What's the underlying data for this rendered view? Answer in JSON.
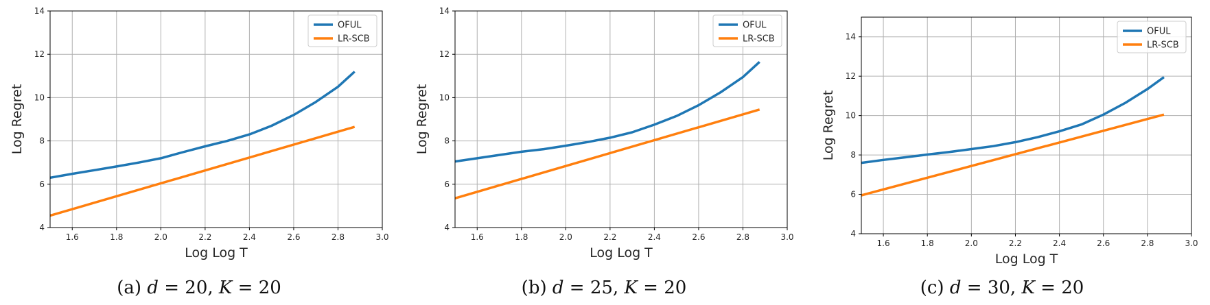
{
  "chart_data": [
    {
      "type": "line",
      "caption": {
        "prefix": "(a) ",
        "d_var": "d",
        "d_val": " = 20, ",
        "k_var": "K",
        "k_val": " = 20"
      },
      "xlabel": "Log Log T",
      "ylabel": "Log Regret",
      "xlim": [
        1.5,
        3.0
      ],
      "ylim": [
        4,
        14
      ],
      "xticks": [
        "1.6",
        "1.8",
        "2.0",
        "2.2",
        "2.4",
        "2.6",
        "2.8",
        "3.0"
      ],
      "yticks": [
        "4",
        "6",
        "8",
        "10",
        "12",
        "14"
      ],
      "grid": true,
      "legend_position": "top-right",
      "series": [
        {
          "name": "OFUL",
          "color": "#1f77b4",
          "x": [
            1.5,
            1.6,
            1.7,
            1.8,
            1.9,
            2.0,
            2.1,
            2.2,
            2.3,
            2.4,
            2.5,
            2.6,
            2.7,
            2.8,
            2.875
          ],
          "y": [
            6.3,
            6.48,
            6.65,
            6.82,
            7.0,
            7.2,
            7.48,
            7.75,
            8.0,
            8.3,
            8.7,
            9.2,
            9.8,
            10.5,
            11.2
          ]
        },
        {
          "name": "LR-SCB",
          "color": "#ff7f0e",
          "x": [
            1.5,
            2.875
          ],
          "y": [
            4.55,
            8.65
          ]
        }
      ]
    },
    {
      "type": "line",
      "caption": {
        "prefix": "(b) ",
        "d_var": "d",
        "d_val": " = 25, ",
        "k_var": "K",
        "k_val": " = 20"
      },
      "xlabel": "Log Log T",
      "ylabel": "Log Regret",
      "xlim": [
        1.5,
        3.0
      ],
      "ylim": [
        4,
        14
      ],
      "xticks": [
        "1.6",
        "1.8",
        "2.0",
        "2.2",
        "2.4",
        "2.6",
        "2.8",
        "3.0"
      ],
      "yticks": [
        "4",
        "6",
        "8",
        "10",
        "12",
        "14"
      ],
      "grid": true,
      "legend_position": "top-right",
      "series": [
        {
          "name": "OFUL",
          "color": "#1f77b4",
          "x": [
            1.5,
            1.6,
            1.7,
            1.8,
            1.9,
            2.0,
            2.1,
            2.2,
            2.3,
            2.4,
            2.5,
            2.6,
            2.7,
            2.8,
            2.875
          ],
          "y": [
            7.05,
            7.2,
            7.35,
            7.5,
            7.62,
            7.78,
            7.95,
            8.15,
            8.4,
            8.75,
            9.15,
            9.65,
            10.25,
            10.95,
            11.65
          ]
        },
        {
          "name": "LR-SCB",
          "color": "#ff7f0e",
          "x": [
            1.5,
            2.875
          ],
          "y": [
            5.35,
            9.45
          ]
        }
      ]
    },
    {
      "type": "line",
      "caption": {
        "prefix": "(c) ",
        "d_var": "d",
        "d_val": " = 30, ",
        "k_var": "K",
        "k_val": " = 20"
      },
      "xlabel": "Log Log T",
      "ylabel": "Log Regret",
      "xlim": [
        1.5,
        3.0
      ],
      "ylim": [
        4,
        15
      ],
      "xticks": [
        "1.6",
        "1.8",
        "2.0",
        "2.2",
        "2.4",
        "2.6",
        "2.8",
        "3.0"
      ],
      "yticks": [
        "4",
        "6",
        "8",
        "10",
        "12",
        "14"
      ],
      "grid": true,
      "legend_position": "top-right",
      "series": [
        {
          "name": "OFUL",
          "color": "#1f77b4",
          "x": [
            1.5,
            1.6,
            1.7,
            1.8,
            1.9,
            2.0,
            2.1,
            2.2,
            2.3,
            2.4,
            2.5,
            2.6,
            2.7,
            2.8,
            2.875
          ],
          "y": [
            7.6,
            7.75,
            7.88,
            8.02,
            8.15,
            8.3,
            8.45,
            8.65,
            8.9,
            9.2,
            9.55,
            10.05,
            10.65,
            11.35,
            11.95
          ]
        },
        {
          "name": "LR-SCB",
          "color": "#ff7f0e",
          "x": [
            1.5,
            2.875
          ],
          "y": [
            5.95,
            10.05
          ]
        }
      ]
    }
  ]
}
